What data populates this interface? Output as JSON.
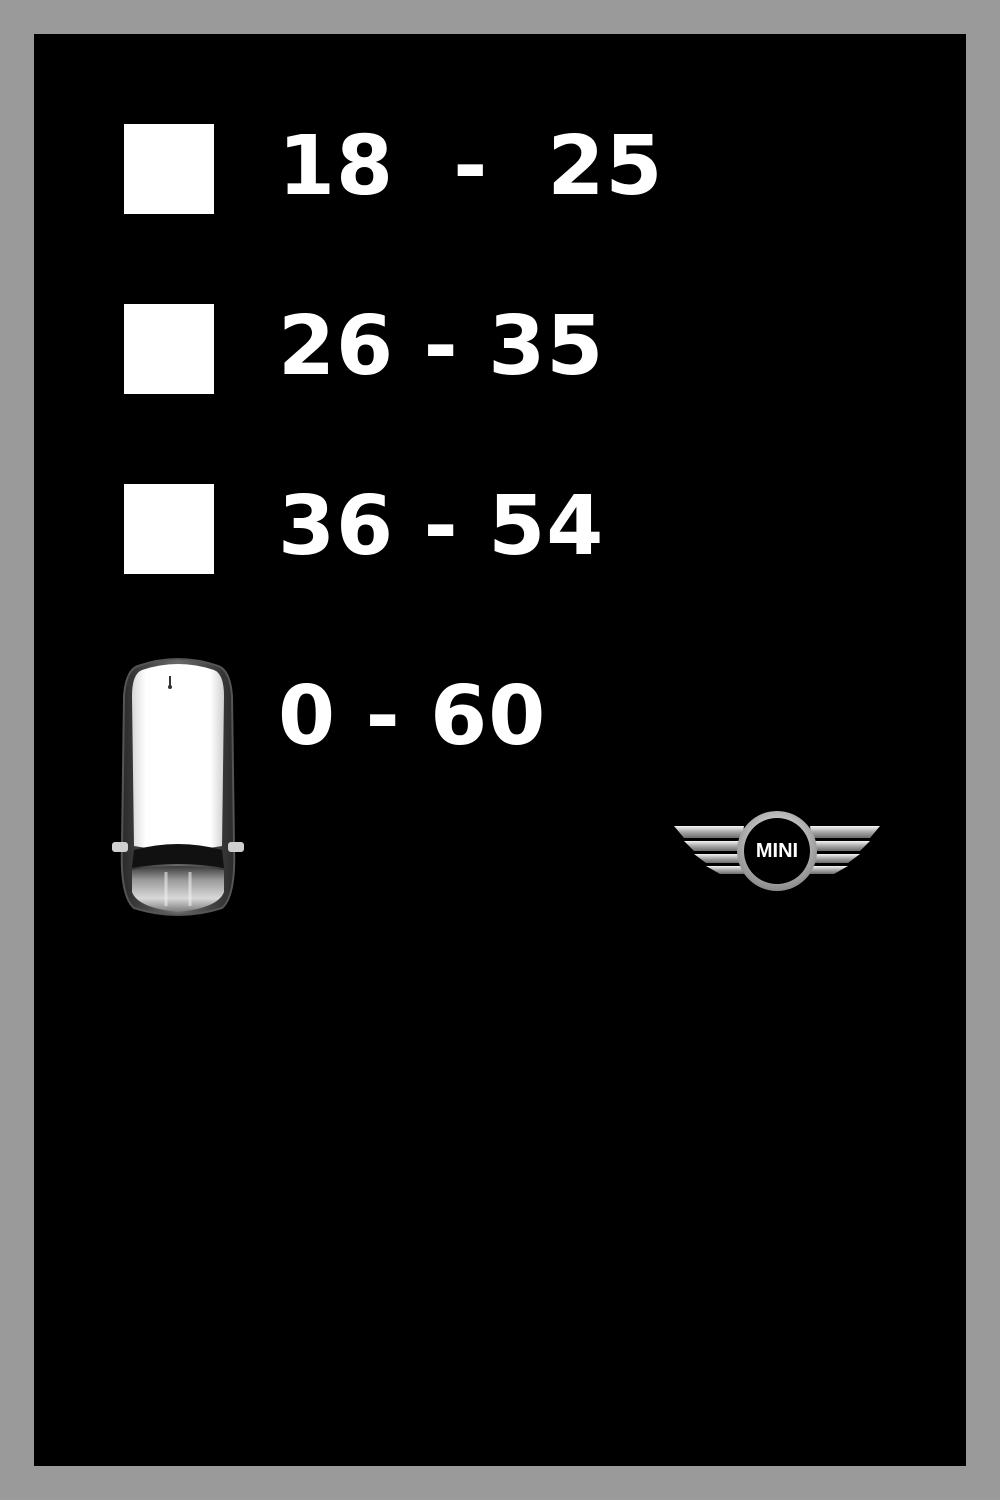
{
  "options": [
    {
      "label": "18  -  25"
    },
    {
      "label": "26 - 35"
    },
    {
      "label": "36 - 54"
    }
  ],
  "car_option": {
    "label": "0 - 60",
    "icon": "mini-car-top-view-icon"
  },
  "brand": {
    "logo_text": "MINI",
    "icon": "mini-wings-logo-icon"
  },
  "colors": {
    "background": "#000000",
    "frame": "#9a9a9a",
    "text": "#ffffff"
  }
}
